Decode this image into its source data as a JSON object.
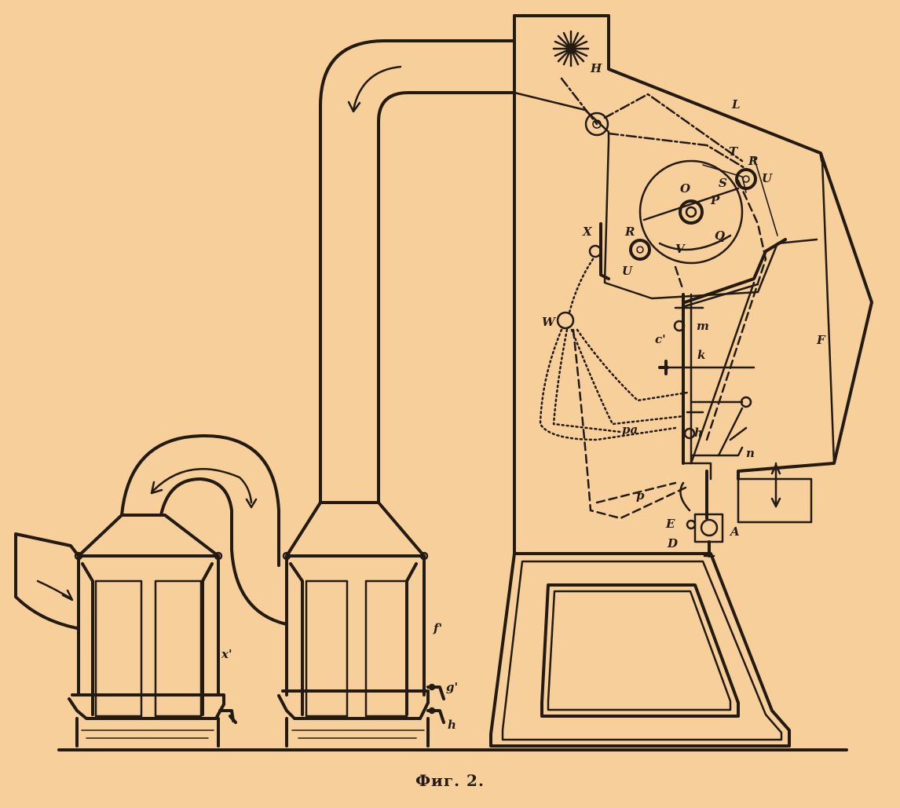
{
  "caption": "Фиг. 2.",
  "labels": {
    "H": "H",
    "L": "L",
    "F": "F",
    "W": "W",
    "X": "X",
    "U_right": "U",
    "U_left": "U",
    "R_right": "R",
    "R_left": "R",
    "O": "O",
    "P": "P",
    "Q": "Q",
    "S": "S",
    "T": "T",
    "V": "V",
    "m": "m",
    "c": "c'",
    "k": "k",
    "h_mid": "h",
    "n": "n",
    "E": "E",
    "D": "D",
    "A": "A",
    "f": "f'",
    "g": "g'",
    "h_tap": "h",
    "x": "x'",
    "p": "p",
    "pa": "pa"
  }
}
